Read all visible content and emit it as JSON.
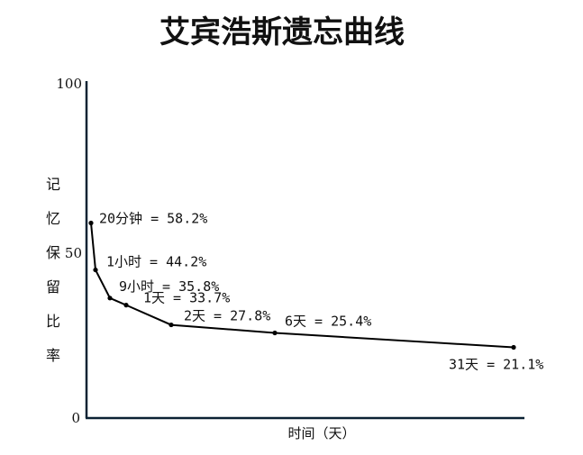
{
  "chart_data": {
    "type": "line",
    "title": "艾宾浩斯遗忘曲线",
    "xlabel": "时间（天）",
    "ylabel": "记忆保留比率",
    "ylim": [
      0,
      100
    ],
    "yticks": [
      "0",
      "50",
      "100"
    ],
    "grid": false,
    "points": [
      {
        "label": "20分钟 = 58.2%",
        "x_days": 0.0139,
        "y": 58.2
      },
      {
        "label": "1小时 = 44.2%",
        "x_days": 0.0417,
        "y": 44.2
      },
      {
        "label": "9小时 = 35.8%",
        "x_days": 0.375,
        "y": 35.8
      },
      {
        "label": "1天 = 33.7%",
        "x_days": 1,
        "y": 33.7
      },
      {
        "label": "2天 = 27.8%",
        "x_days": 2,
        "y": 27.8
      },
      {
        "label": "6天 = 25.4%",
        "x_days": 6,
        "y": 25.4
      },
      {
        "label": "31天 = 21.1%",
        "x_days": 31,
        "y": 21.1
      }
    ]
  }
}
